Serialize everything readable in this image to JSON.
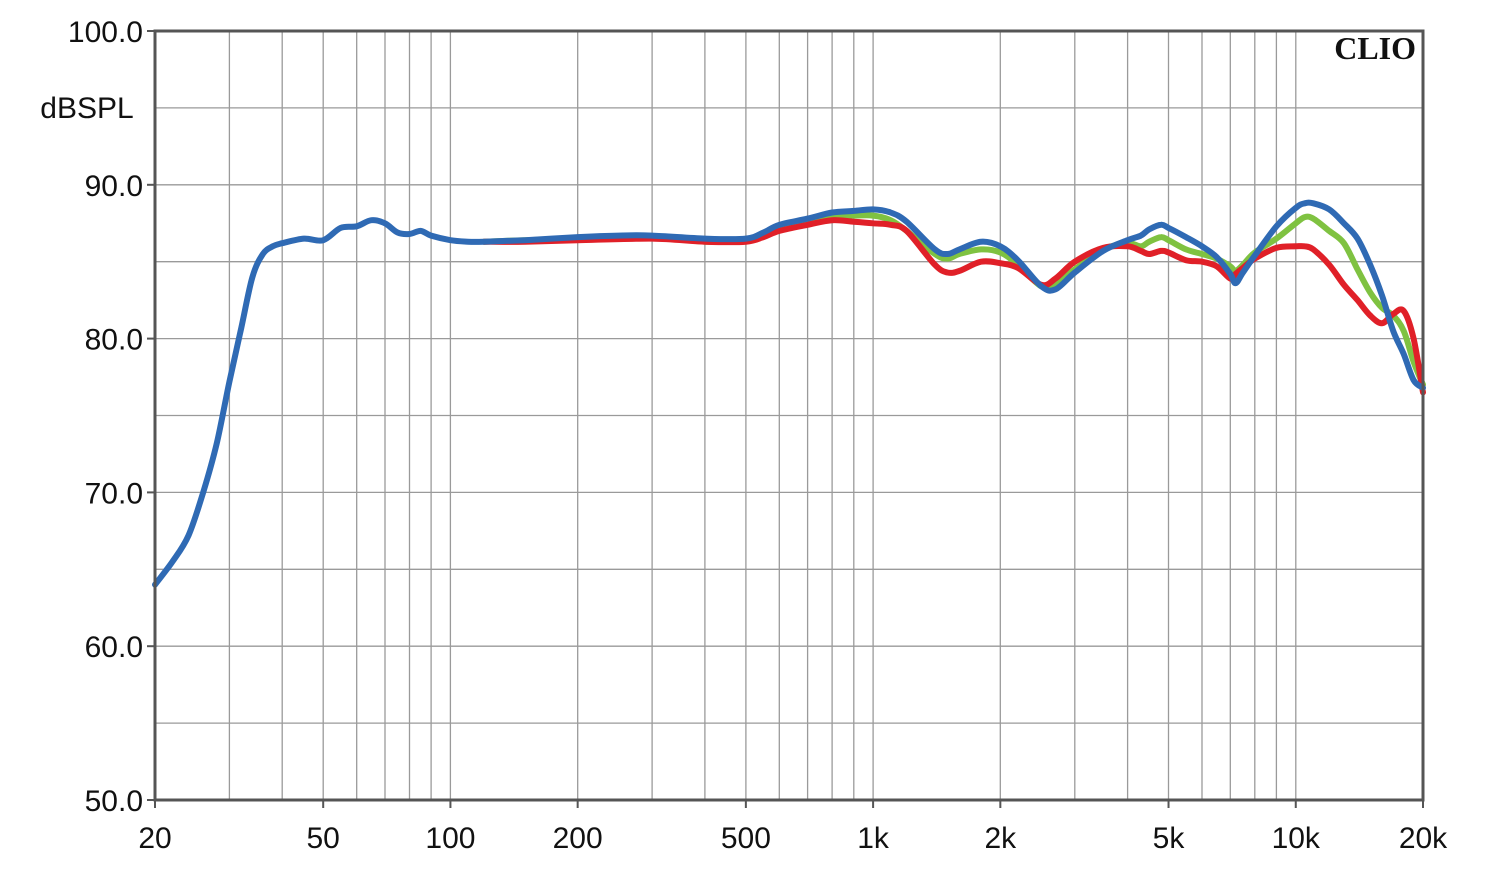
{
  "chart_data": {
    "type": "line",
    "x_scale": "log",
    "xlim": [
      20,
      20000
    ],
    "ylim": [
      50,
      100
    ],
    "ylabel": "dBSPL",
    "watermark": "CLIO",
    "grid": true,
    "x_ticks": [
      {
        "value": 20,
        "label": "20"
      },
      {
        "value": 50,
        "label": "50"
      },
      {
        "value": 100,
        "label": "100"
      },
      {
        "value": 200,
        "label": "200"
      },
      {
        "value": 500,
        "label": "500"
      },
      {
        "value": 1000,
        "label": "1k"
      },
      {
        "value": 2000,
        "label": "2k"
      },
      {
        "value": 5000,
        "label": "5k"
      },
      {
        "value": 10000,
        "label": "10k"
      },
      {
        "value": 20000,
        "label": "20k"
      }
    ],
    "y_ticks": [
      {
        "value": 50,
        "label": "50.0"
      },
      {
        "value": 60,
        "label": "60.0"
      },
      {
        "value": 70,
        "label": "70.0"
      },
      {
        "value": 80,
        "label": "80.0"
      },
      {
        "value": 90,
        "label": "90.0"
      },
      {
        "value": 100,
        "label": "100.0"
      }
    ],
    "series": [
      {
        "color": "#7fc241",
        "x": [
          120,
          150,
          200,
          300,
          400,
          500,
          550,
          600,
          700,
          800,
          900,
          1000,
          1100,
          1200,
          1400,
          1500,
          1600,
          1800,
          2000,
          2200,
          2500,
          2700,
          3000,
          3500,
          4000,
          4300,
          4500,
          4800,
          5000,
          5500,
          6000,
          6500,
          7000,
          7200,
          7500,
          8000,
          9000,
          10000,
          10500,
          11000,
          12000,
          13000,
          14000,
          15000,
          16000,
          17000,
          18000,
          19000,
          20000
        ],
        "y": [
          86.3,
          86.4,
          86.5,
          86.6,
          86.3,
          86.4,
          86.8,
          87.3,
          87.7,
          88.0,
          88.0,
          88.0,
          87.7,
          87.0,
          85.5,
          85.2,
          85.5,
          85.8,
          85.6,
          84.8,
          83.4,
          83.6,
          84.5,
          85.8,
          86.2,
          86.0,
          86.3,
          86.6,
          86.4,
          85.8,
          85.5,
          85.2,
          84.7,
          84.4,
          84.8,
          85.6,
          86.5,
          87.5,
          87.9,
          87.8,
          87.0,
          86.2,
          84.5,
          83.0,
          82.0,
          81.5,
          80.5,
          78.5,
          77.0
        ]
      },
      {
        "color": "#e02028",
        "x": [
          120,
          150,
          200,
          300,
          400,
          500,
          550,
          600,
          700,
          800,
          900,
          1000,
          1100,
          1200,
          1400,
          1500,
          1600,
          1800,
          2000,
          2200,
          2500,
          2700,
          3000,
          3500,
          4000,
          4300,
          4500,
          4800,
          5000,
          5500,
          6000,
          6500,
          7000,
          7200,
          7500,
          8000,
          9000,
          10000,
          10500,
          11000,
          12000,
          13000,
          14000,
          15000,
          16000,
          17000,
          18000,
          19000,
          20000
        ],
        "y": [
          86.3,
          86.3,
          86.4,
          86.5,
          86.3,
          86.3,
          86.6,
          87.0,
          87.4,
          87.7,
          87.6,
          87.5,
          87.4,
          87.0,
          84.8,
          84.3,
          84.4,
          85.0,
          84.9,
          84.6,
          83.5,
          83.9,
          85.0,
          85.9,
          86.0,
          85.7,
          85.5,
          85.7,
          85.6,
          85.1,
          85.0,
          84.7,
          83.9,
          84.2,
          84.6,
          85.2,
          85.9,
          86.0,
          86.0,
          85.8,
          84.8,
          83.5,
          82.5,
          81.5,
          81.0,
          81.6,
          81.8,
          80.0,
          76.5
        ]
      },
      {
        "color": "#2f6ab4",
        "x": [
          20,
          22,
          24,
          26,
          28,
          30,
          32,
          34,
          36,
          38,
          40,
          45,
          50,
          55,
          60,
          65,
          70,
          75,
          80,
          85,
          90,
          100,
          110,
          120,
          150,
          200,
          250,
          300,
          400,
          500,
          550,
          600,
          700,
          800,
          900,
          1000,
          1100,
          1200,
          1400,
          1500,
          1600,
          1800,
          2000,
          2200,
          2500,
          2700,
          3000,
          3500,
          4000,
          4300,
          4500,
          4800,
          5000,
          5500,
          6000,
          6500,
          7000,
          7200,
          7500,
          8000,
          9000,
          10000,
          10500,
          11000,
          12000,
          13000,
          14000,
          15000,
          16000,
          17000,
          18000,
          19000,
          20000
        ],
        "y": [
          64.0,
          65.5,
          67.2,
          70.0,
          73.2,
          77.2,
          80.7,
          84.0,
          85.5,
          86.0,
          86.2,
          86.5,
          86.4,
          87.2,
          87.3,
          87.7,
          87.5,
          86.9,
          86.8,
          87.0,
          86.7,
          86.4,
          86.3,
          86.3,
          86.4,
          86.6,
          86.7,
          86.7,
          86.5,
          86.5,
          86.9,
          87.4,
          87.8,
          88.2,
          88.3,
          88.4,
          88.2,
          87.6,
          85.8,
          85.5,
          85.8,
          86.3,
          86.0,
          85.1,
          83.4,
          83.2,
          84.3,
          85.7,
          86.4,
          86.7,
          87.1,
          87.4,
          87.2,
          86.6,
          86.0,
          85.3,
          84.2,
          83.6,
          84.3,
          85.4,
          87.3,
          88.5,
          88.8,
          88.8,
          88.4,
          87.5,
          86.5,
          84.8,
          82.8,
          80.5,
          79.0,
          77.3,
          76.8
        ]
      }
    ]
  }
}
